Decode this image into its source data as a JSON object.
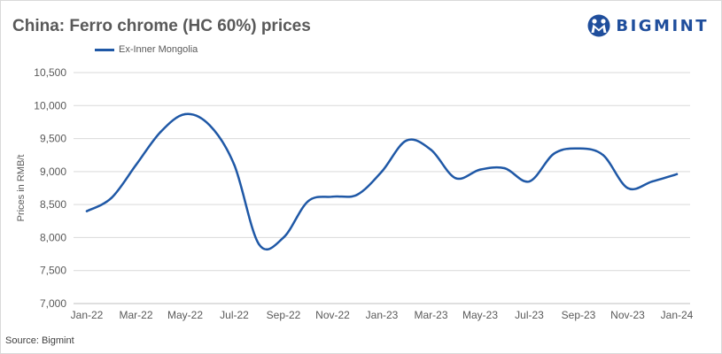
{
  "header": {
    "title": "China: Ferro chrome (HC 60%) prices"
  },
  "brand": {
    "name": "BIGMINT",
    "icon": "bigmint-logo-icon",
    "color": "#1f4e9c"
  },
  "footer": {
    "source": "Source: Bigmint"
  },
  "colors": {
    "series": "#1f58a6",
    "grid": "#d9d9d9",
    "text": "#595959"
  },
  "chart_data": {
    "type": "line",
    "title": "China: Ferro chrome (HC 60%) prices",
    "xlabel": "",
    "ylabel": "Prices in RMB/t",
    "ylim": [
      7000,
      10500
    ],
    "yticks": [
      7000,
      7500,
      8000,
      8500,
      9000,
      9500,
      10000,
      10500
    ],
    "ytick_labels": [
      "7,000",
      "7,500",
      "8,000",
      "8,500",
      "9,000",
      "9,500",
      "10,000",
      "10,500"
    ],
    "xtick_labels": [
      "Jan-22",
      "Mar-22",
      "May-22",
      "Jul-22",
      "Sep-22",
      "Nov-22",
      "Jan-23",
      "Mar-23",
      "May-23",
      "Jul-23",
      "Sep-23",
      "Nov-23",
      "Jan-24"
    ],
    "grid": "horizontal",
    "legend_position": "top-left",
    "series": [
      {
        "name": "Ex-Inner Mongolia",
        "x": [
          "Jan-22",
          "Feb-22",
          "Mar-22",
          "Apr-22",
          "May-22",
          "Jun-22",
          "Jul-22",
          "Aug-22",
          "Sep-22",
          "Oct-22",
          "Nov-22",
          "Dec-22",
          "Jan-23",
          "Feb-23",
          "Mar-23",
          "Apr-23",
          "May-23",
          "Jun-23",
          "Jul-23",
          "Aug-23",
          "Sep-23",
          "Oct-23",
          "Nov-23",
          "Dec-23",
          "Jan-24"
        ],
        "values": [
          8400,
          8600,
          9100,
          9600,
          9870,
          9700,
          9100,
          7900,
          8000,
          8550,
          8620,
          8650,
          9000,
          9470,
          9330,
          8900,
          9030,
          9050,
          8850,
          9270,
          9350,
          9250,
          8750,
          8850,
          8960
        ]
      }
    ]
  }
}
